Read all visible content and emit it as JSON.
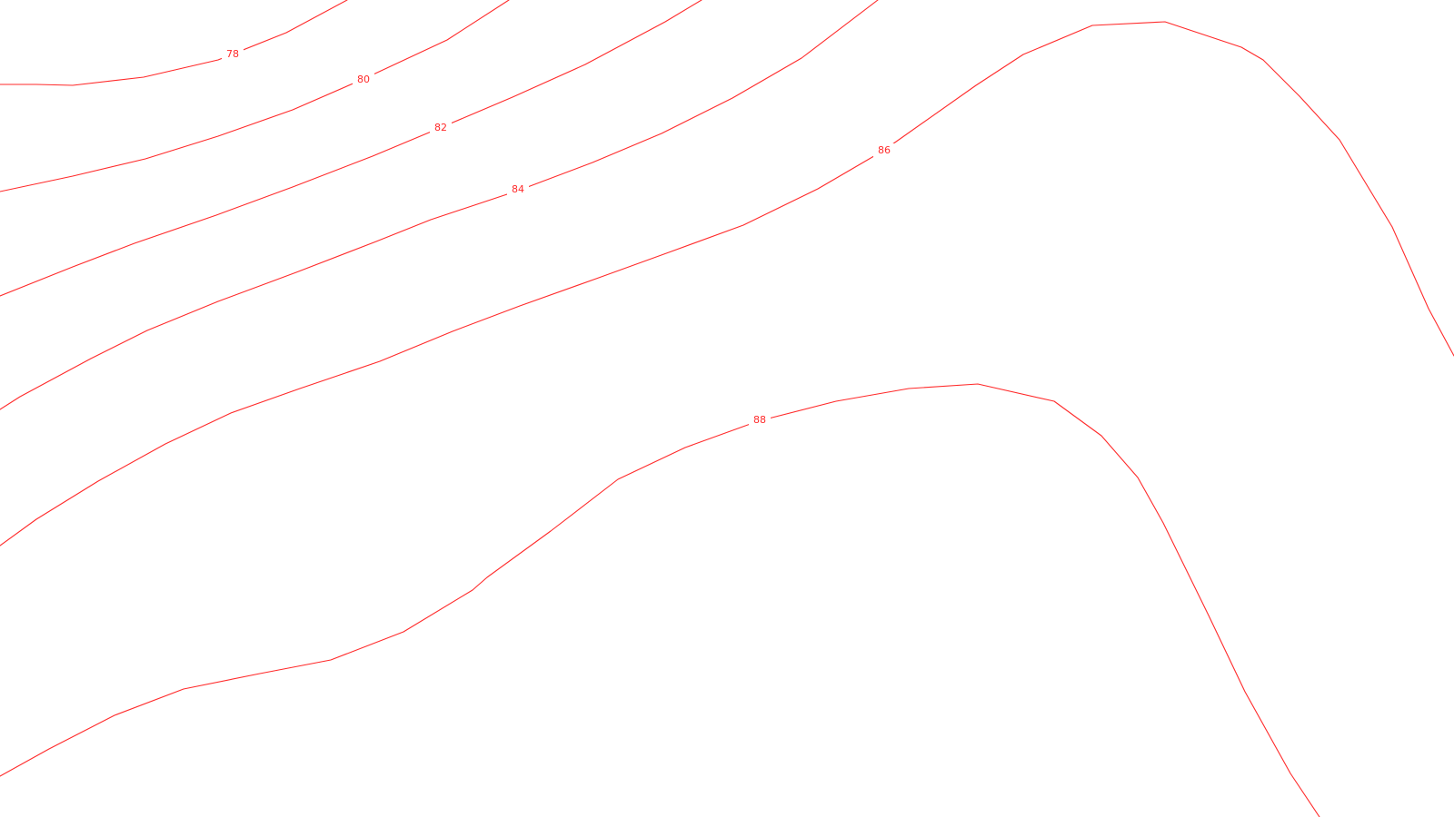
{
  "map": {
    "line_color": "#ff2a2a",
    "background_color": "#ffffff",
    "contours": [
      {
        "elevation": 78,
        "label": "78"
      },
      {
        "elevation": 80,
        "label": "80"
      },
      {
        "elevation": 82,
        "label": "82"
      },
      {
        "elevation": 84,
        "label": "84"
      },
      {
        "elevation": 86,
        "label": "86"
      },
      {
        "elevation": 88,
        "label": "88"
      }
    ]
  }
}
